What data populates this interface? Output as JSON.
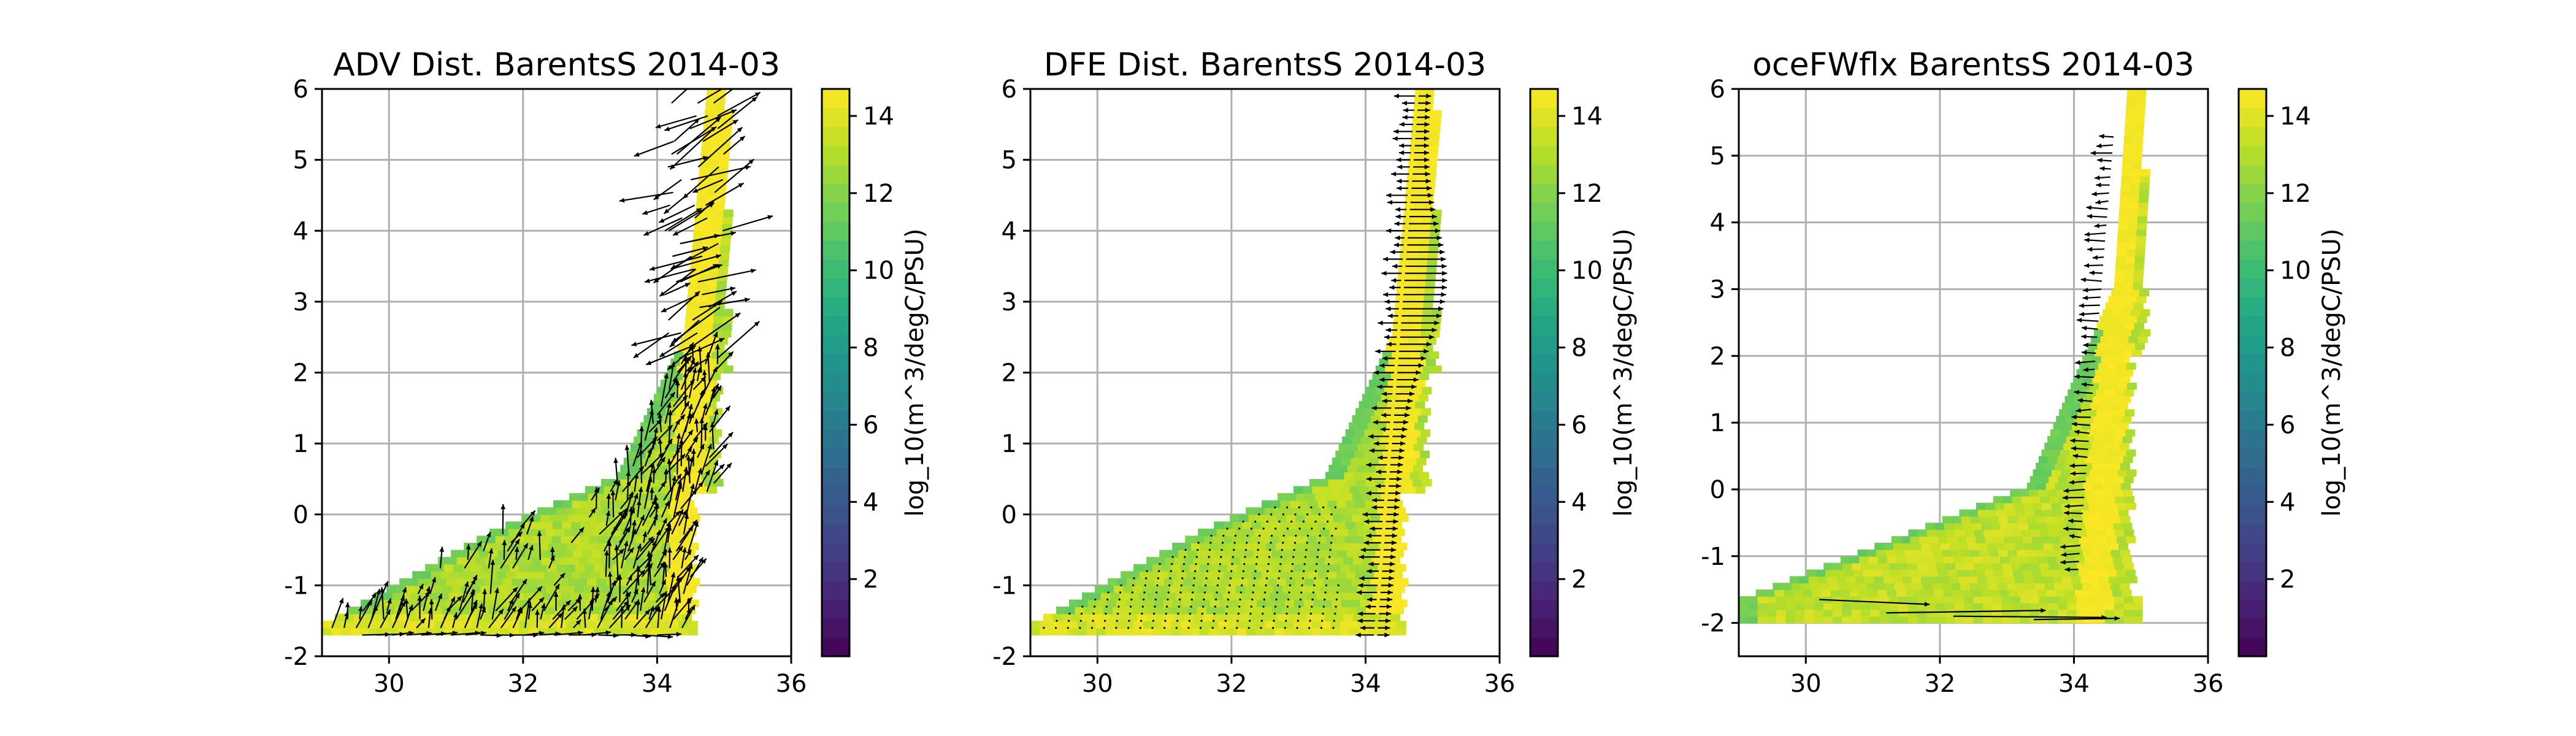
{
  "colormap": [
    "#440154",
    "#482475",
    "#414487",
    "#355f8d",
    "#2a788e",
    "#21918c",
    "#22a884",
    "#44bf70",
    "#7ad151",
    "#bddf26",
    "#fde725"
  ],
  "chart_data": [
    {
      "type": "heatmap",
      "title": "ADV Dist. BarentsS 2014-03",
      "xlabel": "",
      "ylabel": "",
      "xlim": [
        29,
        36
      ],
      "ylim": [
        -2,
        6
      ],
      "xticks": [
        "30",
        "32",
        "34",
        "36"
      ],
      "yticks": [
        "-2",
        "-1",
        "0",
        "1",
        "2",
        "3",
        "4",
        "5",
        "6"
      ],
      "grid": true,
      "quiver": "dense",
      "colorbar": {
        "label": "log_10(m^3/degC/PSU)",
        "range": [
          0,
          14.7
        ],
        "ticks": [
          "2",
          "4",
          "6",
          "8",
          "10",
          "12",
          "14"
        ]
      }
    },
    {
      "type": "heatmap",
      "title": "DFE Dist. BarentsS 2014-03",
      "xlabel": "",
      "ylabel": "",
      "xlim": [
        29,
        36
      ],
      "ylim": [
        -2,
        6
      ],
      "xticks": [
        "30",
        "32",
        "34",
        "36"
      ],
      "yticks": [
        "-2",
        "-1",
        "0",
        "1",
        "2",
        "3",
        "4",
        "5",
        "6"
      ],
      "grid": true,
      "quiver": "horizontal",
      "colorbar": {
        "label": "log_10(m^3/degC/PSU)",
        "range": [
          0,
          14.7
        ],
        "ticks": [
          "2",
          "4",
          "6",
          "8",
          "10",
          "12",
          "14"
        ]
      }
    },
    {
      "type": "heatmap",
      "title": "oceFWflx BarentsS 2014-03",
      "xlabel": "",
      "ylabel": "",
      "xlim": [
        29,
        36
      ],
      "ylim": [
        -2.5,
        6
      ],
      "xticks": [
        "30",
        "32",
        "34",
        "36"
      ],
      "yticks": [
        "-2",
        "-1",
        "0",
        "1",
        "2",
        "3",
        "4",
        "5",
        "6"
      ],
      "grid": true,
      "quiver": "sparse",
      "colorbar": {
        "label": "log_10(m^3/degC/PSU)",
        "range": [
          0,
          14.7
        ],
        "ticks": [
          "2",
          "4",
          "6",
          "8",
          "10",
          "12",
          "14"
        ]
      }
    }
  ]
}
